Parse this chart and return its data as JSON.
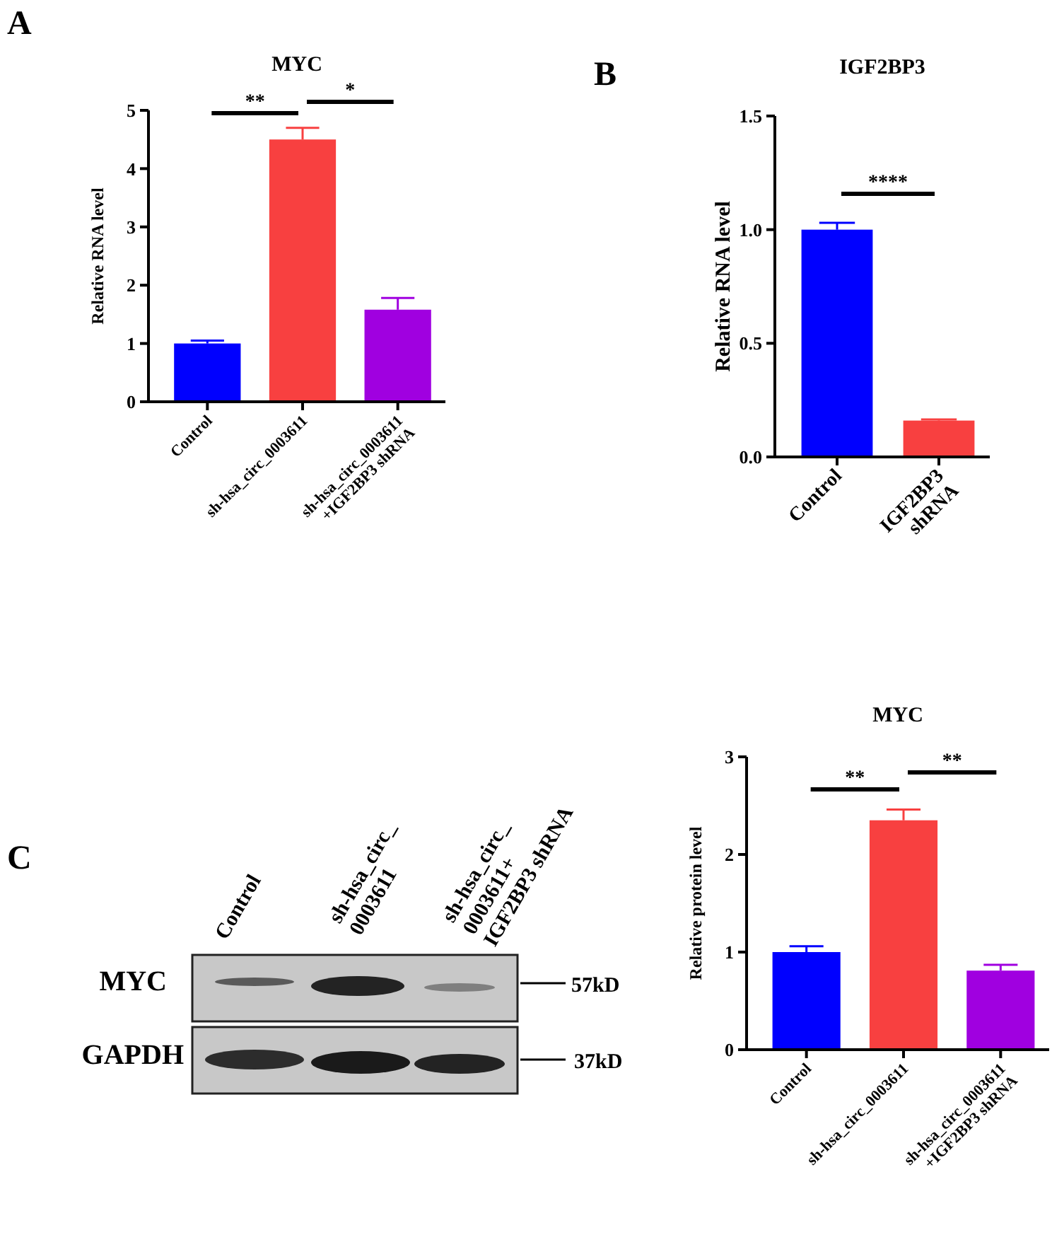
{
  "chart_data": [
    {
      "type": "bar",
      "title": "MYC",
      "ylabel": "Relative RNA level",
      "categories": [
        "Control",
        "sh-hsa_circ_0003611",
        "sh-hsa_circ_0003611\n+IGF2BP3 shRNA"
      ],
      "values": [
        1.0,
        4.5,
        1.58
      ],
      "colors": [
        "#0000ff",
        "#f84040",
        "#a000e0"
      ],
      "errors": [
        [
          1.0,
          1.05
        ],
        [
          4.5,
          4.7
        ],
        [
          1.58,
          1.78
        ]
      ],
      "ylim": [
        0,
        5
      ],
      "yticks": [
        0,
        1,
        2,
        3,
        4,
        5
      ],
      "annotations": [
        "A",
        "**",
        "*"
      ]
    },
    {
      "type": "bar",
      "title": "IGF2BP3",
      "ylabel": "Relative RNA level",
      "categories": [
        "Control",
        "IGF2BP3\nshRNA"
      ],
      "values": [
        1.0,
        0.16
      ],
      "colors": [
        "#0000ff",
        "#f84040"
      ],
      "errors": [
        [
          1.0,
          1.03
        ],
        [
          0.16,
          0.165
        ]
      ],
      "ylim": [
        0,
        1.5
      ],
      "yticks": [
        {
          "value": 0,
          "label": "0.0"
        },
        {
          "value": 0.5,
          "label": "0.5"
        },
        {
          "value": 1,
          "label": "1.0"
        },
        {
          "value": 1.5,
          "label": "1.5"
        }
      ],
      "annotations": [
        "B",
        "****"
      ]
    },
    {
      "type": "other",
      "annotations": [
        "C",
        "Control",
        "sh-hsa_circ_\n0003611",
        "sh-hsa_circ_\n0003611+\nIGF2BP3 shRNA",
        "MYC",
        "GAPDH",
        "57kD",
        "37kD"
      ]
    },
    {
      "type": "bar",
      "title": "MYC",
      "ylabel": "Relative protein level",
      "categories": [
        "Control",
        "sh-hsa_circ_0003611",
        "sh-hsa_circ_0003611\n+IGF2BP3 shRNA"
      ],
      "values": [
        1.0,
        2.35,
        0.81
      ],
      "colors": [
        "#0000ff",
        "#f84040",
        "#a000e0"
      ],
      "errors": [
        [
          1.0,
          1.06
        ],
        [
          2.35,
          2.46
        ],
        [
          0.81,
          0.87
        ]
      ],
      "ylim": [
        0,
        3
      ],
      "yticks": [
        0,
        1,
        2,
        3
      ],
      "annotations": [
        "**",
        "**"
      ]
    }
  ]
}
